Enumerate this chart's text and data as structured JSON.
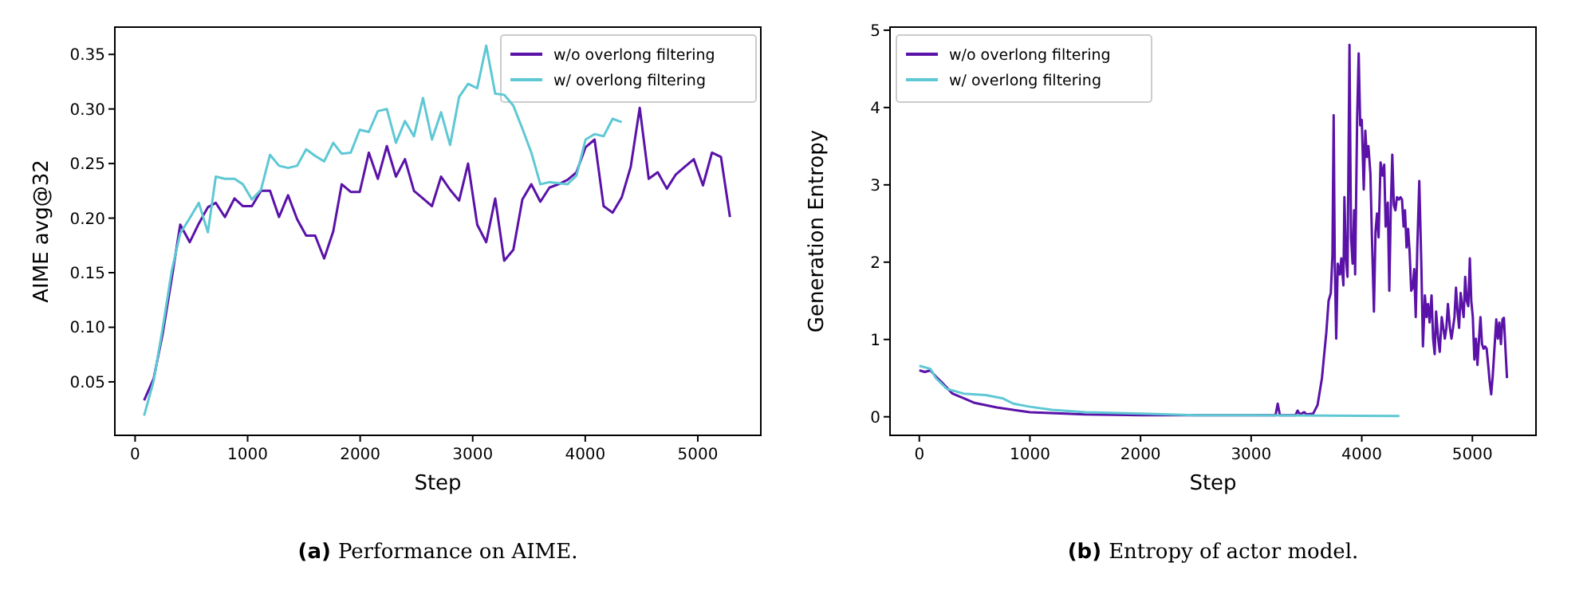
{
  "chart_data": [
    {
      "type": "line",
      "xlabel": "Step",
      "ylabel": "AIME avg@32",
      "legend": "top right",
      "grid": false,
      "xlim": [
        -180,
        5560
      ],
      "ylim": [
        0.001,
        0.375
      ],
      "xticks": [
        0,
        1000,
        2000,
        3000,
        4000,
        5000
      ],
      "yticks": [
        0.05,
        {
          "value": 0.1,
          "label": "0.10"
        },
        0.15,
        {
          "value": 0.2,
          "label": "0.20"
        },
        0.25,
        {
          "value": 0.3,
          "label": "0.30"
        },
        0.35
      ],
      "annotations": [
        "(a) Performance on AIME."
      ],
      "series": [
        {
          "name": "w/o overlong filtering",
          "color": "#5a12a8",
          "x": [
            80,
            165,
            245,
            326,
            401,
            486,
            566,
            647,
            717,
            798,
            883,
            958,
            1038,
            1119,
            1199,
            1279,
            1359,
            1440,
            1520,
            1600,
            1680,
            1761,
            1836,
            1916,
            1996,
            2077,
            2157,
            2237,
            2318,
            2398,
            2478,
            2558,
            2638,
            2719,
            2799,
            2879,
            2959,
            3040,
            3120,
            3200,
            3280,
            3361,
            3441,
            3521,
            3601,
            3682,
            3762,
            3842,
            3922,
            4003,
            4083,
            4163,
            4243,
            4324,
            4404,
            4484,
            4564,
            4644,
            4725,
            4805,
            4885,
            4965,
            5046,
            5126,
            5206,
            5286
          ],
          "values": [
            0.033,
            0.053,
            0.094,
            0.145,
            0.194,
            0.178,
            0.195,
            0.21,
            0.214,
            0.201,
            0.218,
            0.211,
            0.211,
            0.225,
            0.225,
            0.201,
            0.221,
            0.199,
            0.184,
            0.184,
            0.163,
            0.188,
            0.231,
            0.224,
            0.224,
            0.26,
            0.236,
            0.266,
            0.238,
            0.254,
            0.225,
            0.218,
            0.211,
            0.238,
            0.226,
            0.216,
            0.25,
            0.194,
            0.178,
            0.218,
            0.161,
            0.171,
            0.217,
            0.231,
            0.215,
            0.228,
            0.231,
            0.235,
            0.242,
            0.265,
            0.272,
            0.211,
            0.205,
            0.219,
            0.247,
            0.301,
            0.236,
            0.242,
            0.227,
            0.24,
            0.247,
            0.254,
            0.23,
            0.26,
            0.256,
            0.201
          ]
        },
        {
          "name": "w/ overlong filtering",
          "color": "#5ec8d4",
          "x": [
            80,
            165,
            245,
            326,
            401,
            486,
            566,
            647,
            717,
            798,
            883,
            958,
            1038,
            1119,
            1199,
            1279,
            1359,
            1440,
            1520,
            1600,
            1680,
            1761,
            1836,
            1916,
            1996,
            2077,
            2157,
            2237,
            2318,
            2398,
            2478,
            2558,
            2638,
            2719,
            2799,
            2879,
            2959,
            3040,
            3120,
            3200,
            3280,
            3361,
            3441,
            3521,
            3601,
            3682,
            3762,
            3842,
            3922,
            4003,
            4083,
            4163,
            4243,
            4324
          ],
          "values": [
            0.019,
            0.051,
            0.099,
            0.152,
            0.186,
            0.2,
            0.214,
            0.187,
            0.238,
            0.236,
            0.236,
            0.231,
            0.217,
            0.226,
            0.258,
            0.248,
            0.246,
            0.248,
            0.263,
            0.257,
            0.252,
            0.269,
            0.259,
            0.26,
            0.281,
            0.279,
            0.298,
            0.3,
            0.269,
            0.289,
            0.275,
            0.31,
            0.272,
            0.297,
            0.267,
            0.311,
            0.323,
            0.319,
            0.358,
            0.314,
            0.313,
            0.303,
            0.282,
            0.26,
            0.231,
            0.233,
            0.232,
            0.231,
            0.239,
            0.272,
            0.277,
            0.275,
            0.291,
            0.288
          ]
        }
      ]
    },
    {
      "type": "line",
      "xlabel": "Step",
      "ylabel": "Generation Entropy",
      "legend": "top left",
      "grid": false,
      "xlim": [
        -265,
        5575
      ],
      "ylim": [
        -0.24,
        5.04
      ],
      "xticks": [
        0,
        1000,
        2000,
        3000,
        4000,
        5000
      ],
      "yticks": [
        0,
        1,
        2,
        3,
        4,
        5
      ],
      "annotations": [
        "(b) Entropy of actor model."
      ],
      "series": [
        {
          "name": "w/o overlong filtering",
          "color": "#5a12a8",
          "x": [
            0,
            50,
            100,
            150,
            200,
            300,
            400,
            500,
            700,
            1000,
            1500,
            2000,
            3220,
            3240,
            3260,
            3400,
            3420,
            3440,
            3480,
            3500,
            3560,
            3600,
            3640,
            3650,
            3680,
            3700,
            3720,
            3735,
            3746,
            3756,
            3769,
            3783,
            3802,
            3815,
            3834,
            3843,
            3857,
            3871,
            3889,
            3903,
            3917,
            3931,
            3940,
            3958,
            3972,
            3986,
            4000,
            4018,
            4032,
            4046,
            4060,
            4078,
            4092,
            4110,
            4124,
            4138,
            4152,
            4170,
            4189,
            4203,
            4216,
            4235,
            4249,
            4262,
            4276,
            4290,
            4304,
            4318,
            4336,
            4350,
            4364,
            4378,
            4391,
            4405,
            4419,
            4433,
            4447,
            4461,
            4474,
            4488,
            4502,
            4520,
            4539,
            4553,
            4571,
            4585,
            4599,
            4613,
            4631,
            4645,
            4659,
            4672,
            4691,
            4705,
            4723,
            4737,
            4751,
            4765,
            4779,
            4797,
            4811,
            4825,
            4838,
            4852,
            4866,
            4880,
            4894,
            4908,
            4921,
            4935,
            4949,
            4963,
            4977,
            4990,
            5004,
            5018,
            5032,
            5046,
            5060,
            5073,
            5087,
            5101,
            5115,
            5129,
            5143,
            5156,
            5170,
            5184,
            5202,
            5216,
            5230,
            5244,
            5258,
            5272,
            5285,
            5299,
            5313
          ],
          "values": [
            0.6,
            0.58,
            0.6,
            0.52,
            0.45,
            0.3,
            0.24,
            0.18,
            0.12,
            0.06,
            0.03,
            0.02,
            0.02,
            0.17,
            0.02,
            0.02,
            0.08,
            0.03,
            0.06,
            0.03,
            0.04,
            0.15,
            0.5,
            0.65,
            1.1,
            1.5,
            1.6,
            2.1,
            3.9,
            1.98,
            1.01,
            1.98,
            1.84,
            2.05,
            1.7,
            2.84,
            2.06,
            1.81,
            4.81,
            2.32,
            1.98,
            2.67,
            1.84,
            3.84,
            4.7,
            3.77,
            3.84,
            2.94,
            3.7,
            3.36,
            3.5,
            3.15,
            2.32,
            1.36,
            2.39,
            2.63,
            2.32,
            3.29,
            3.12,
            3.26,
            2.46,
            2.77,
            1.63,
            2.67,
            3.39,
            2.74,
            2.67,
            2.84,
            2.81,
            2.84,
            2.81,
            2.46,
            2.67,
            2.19,
            2.43,
            2.12,
            1.63,
            1.67,
            1.91,
            1.29,
            2.19,
            3.05,
            1.94,
            0.91,
            1.57,
            1.29,
            1.46,
            1.22,
            1.57,
            1.01,
            0.81,
            1.36,
            1.01,
            0.84,
            1.29,
            1.15,
            1.01,
            1.15,
            1.46,
            1.15,
            1.01,
            1.15,
            1.29,
            1.67,
            1.36,
            1.15,
            1.6,
            1.43,
            1.29,
            1.81,
            1.5,
            1.43,
            2.05,
            1.5,
            1.29,
            0.74,
            1.01,
            0.67,
            1.01,
            1.29,
            0.94,
            0.88,
            0.91,
            0.88,
            0.67,
            0.46,
            0.29,
            0.53,
            0.94,
            1.26,
            1.01,
            1.22,
            0.94,
            1.26,
            1.28,
            0.88,
            0.5
          ]
        },
        {
          "name": "w/ overlong filtering",
          "color": "#5ec8d4",
          "x": [
            0,
            100,
            150,
            250,
            400,
            600,
            750,
            850,
            1000,
            1200,
            1500,
            2000,
            2500,
            3000,
            4340
          ],
          "values": [
            0.66,
            0.62,
            0.5,
            0.36,
            0.3,
            0.28,
            0.24,
            0.17,
            0.13,
            0.09,
            0.06,
            0.04,
            0.02,
            0.02,
            0.01
          ]
        }
      ]
    }
  ]
}
